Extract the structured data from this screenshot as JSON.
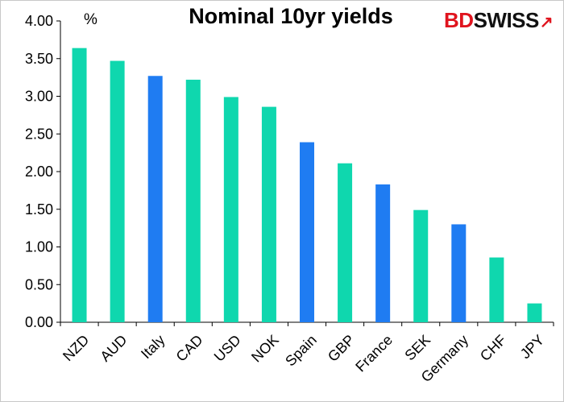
{
  "chart_data": {
    "type": "bar",
    "title": "Nominal 10yr yields",
    "unit_label": "%",
    "xlabel": "",
    "ylabel": "",
    "categories": [
      "NZD",
      "AUD",
      "Italy",
      "CAD",
      "USD",
      "NOK",
      "Spain",
      "GBP",
      "France",
      "SEK",
      "Germany",
      "CHF",
      "JPY"
    ],
    "values": [
      3.64,
      3.47,
      3.27,
      3.22,
      2.99,
      2.86,
      2.39,
      2.11,
      1.83,
      1.49,
      1.3,
      0.86,
      0.25
    ],
    "highlight": [
      false,
      false,
      true,
      false,
      false,
      false,
      true,
      false,
      true,
      false,
      true,
      false,
      false
    ],
    "ylim": [
      0,
      4
    ],
    "yticks": [
      "0.00",
      "0.50",
      "1.00",
      "1.50",
      "2.00",
      "2.50",
      "3.00",
      "3.50",
      "4.00"
    ],
    "ytick_values": [
      0,
      0.5,
      1,
      1.5,
      2,
      2.5,
      3,
      3.5,
      4
    ],
    "grid": false,
    "legend": "none",
    "colors": {
      "default": "#0fd7ae",
      "highlight": "#1f7cf2",
      "axis": "#000000"
    }
  },
  "logo": {
    "part1": "BD",
    "part2": "SWISS",
    "mark": "↗"
  }
}
